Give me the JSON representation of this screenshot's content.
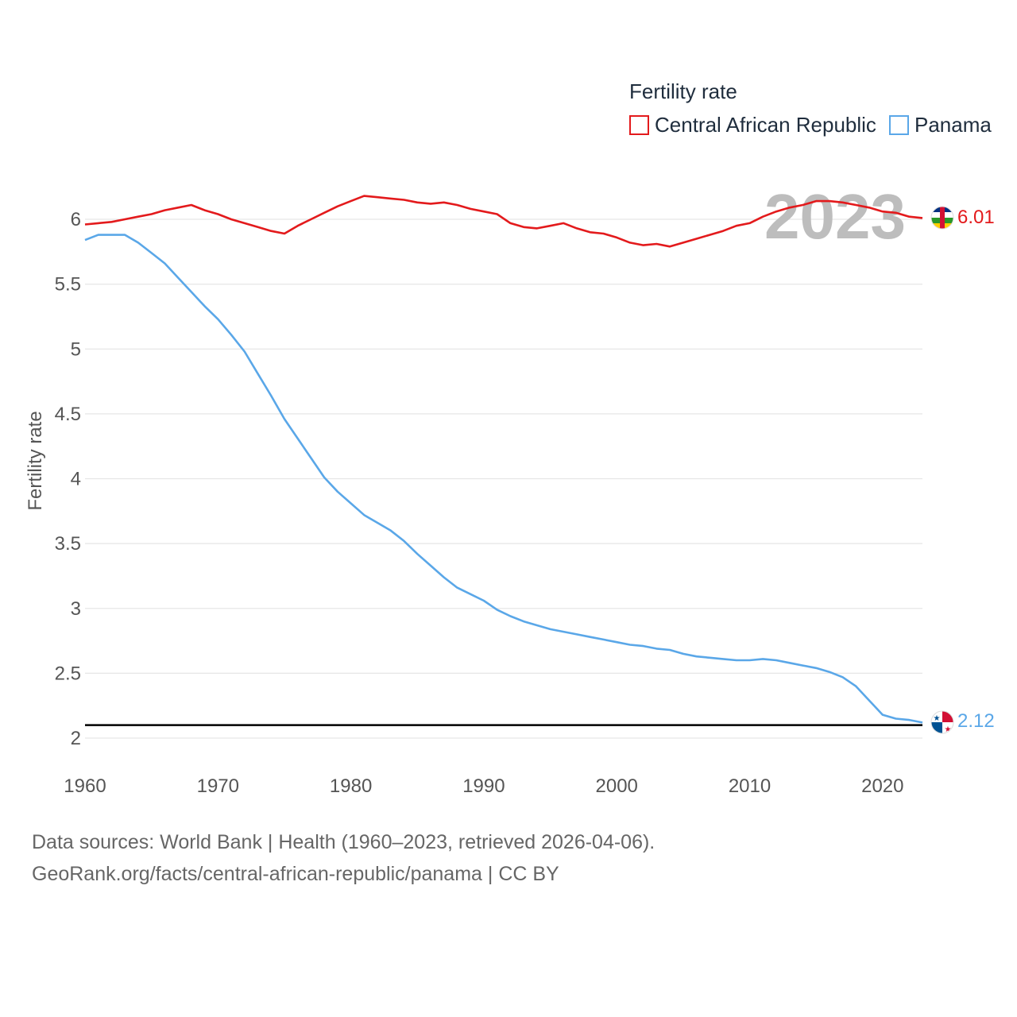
{
  "legend": {
    "title": "Fertility rate",
    "items": [
      {
        "name": "Central African Republic",
        "color": "#e31a1c"
      },
      {
        "name": "Panama",
        "color": "#5aa7e8"
      }
    ]
  },
  "watermark_year": "2023",
  "footer": {
    "line1": "Data sources: World Bank | Health (1960–2023, retrieved 2026-04-06).",
    "line2": "GeoRank.org/facts/central-african-republic/panama | CC BY"
  },
  "chart_data": {
    "type": "line",
    "title": "Fertility rate",
    "xlabel": "",
    "ylabel": "Fertility rate",
    "xlim": [
      1960,
      2023
    ],
    "ylim": [
      2,
      6.3
    ],
    "x_ticks": [
      "1960",
      "1970",
      "1980",
      "1990",
      "2000",
      "2010",
      "2020"
    ],
    "y_ticks": [
      "2",
      "2.5",
      "3",
      "3.5",
      "4",
      "4.5",
      "5",
      "5.5",
      "6"
    ],
    "reference_line": 2.1,
    "x": [
      1960,
      1961,
      1962,
      1963,
      1964,
      1965,
      1966,
      1967,
      1968,
      1969,
      1970,
      1971,
      1972,
      1973,
      1974,
      1975,
      1976,
      1977,
      1978,
      1979,
      1980,
      1981,
      1982,
      1983,
      1984,
      1985,
      1986,
      1987,
      1988,
      1989,
      1990,
      1991,
      1992,
      1993,
      1994,
      1995,
      1996,
      1997,
      1998,
      1999,
      2000,
      2001,
      2002,
      2003,
      2004,
      2005,
      2006,
      2007,
      2008,
      2009,
      2010,
      2011,
      2012,
      2013,
      2014,
      2015,
      2016,
      2017,
      2018,
      2019,
      2020,
      2021,
      2022,
      2023
    ],
    "series": [
      {
        "name": "Central African Republic",
        "color": "#e31a1c",
        "end_label": "6.01",
        "values": [
          5.96,
          5.97,
          5.98,
          6.0,
          6.02,
          6.04,
          6.07,
          6.09,
          6.11,
          6.07,
          6.04,
          6.0,
          5.97,
          5.94,
          5.91,
          5.89,
          5.95,
          6.0,
          6.05,
          6.1,
          6.14,
          6.18,
          6.17,
          6.16,
          6.15,
          6.13,
          6.12,
          6.13,
          6.11,
          6.08,
          6.06,
          6.04,
          5.97,
          5.94,
          5.93,
          5.95,
          5.97,
          5.93,
          5.9,
          5.89,
          5.86,
          5.82,
          5.8,
          5.81,
          5.79,
          5.82,
          5.85,
          5.88,
          5.91,
          5.95,
          5.97,
          6.02,
          6.06,
          6.09,
          6.11,
          6.14,
          6.14,
          6.13,
          6.11,
          6.09,
          6.06,
          6.05,
          6.02,
          6.01
        ]
      },
      {
        "name": "Panama",
        "color": "#5aa7e8",
        "end_label": "2.12",
        "values": [
          5.84,
          5.88,
          5.88,
          5.88,
          5.82,
          5.74,
          5.66,
          5.55,
          5.44,
          5.33,
          5.23,
          5.11,
          4.98,
          4.81,
          4.64,
          4.46,
          4.31,
          4.16,
          4.01,
          3.9,
          3.81,
          3.72,
          3.66,
          3.6,
          3.52,
          3.42,
          3.33,
          3.24,
          3.16,
          3.11,
          3.06,
          2.99,
          2.94,
          2.9,
          2.87,
          2.84,
          2.82,
          2.8,
          2.78,
          2.76,
          2.74,
          2.72,
          2.71,
          2.69,
          2.68,
          2.65,
          2.63,
          2.62,
          2.61,
          2.6,
          2.6,
          2.61,
          2.6,
          2.58,
          2.56,
          2.54,
          2.51,
          2.47,
          2.4,
          2.29,
          2.18,
          2.15,
          2.14,
          2.12
        ]
      }
    ]
  }
}
